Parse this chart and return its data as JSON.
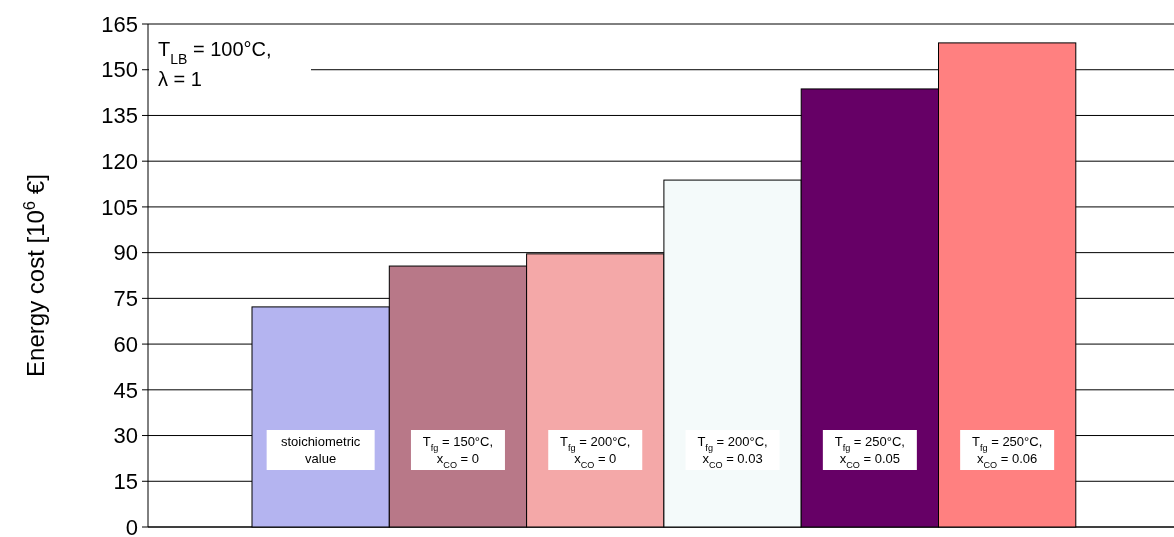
{
  "chart_data": {
    "type": "bar",
    "ylabel": "Energy cost [10$^{6}$ €]",
    "categories": [
      "stoichiometric\nvalue",
      "T$_{fg}$ = 150°C,\nx$_{CO}$ = 0",
      "T$_{fg}$ = 200°C,\nx$_{CO}$ = 0",
      "T$_{fg}$ = 200°C,\nx$_{CO}$ = 0.03",
      "T$_{fg}$ = 250°C,\nx$_{CO}$ = 0.05",
      "T$_{fg}$ = 250°C,\nx$_{CO}$ = 0.06"
    ],
    "values": [
      72.2,
      85.6,
      89.6,
      113.8,
      143.7,
      158.8
    ],
    "colors": [
      "#b4b4f0",
      "#b87888",
      "#f4a8a8",
      "#f4fafa",
      "#660066",
      "#ff8080"
    ],
    "ylim": [
      0,
      165
    ],
    "yticks": [
      0,
      15,
      30,
      45,
      60,
      75,
      90,
      105,
      120,
      135,
      150,
      165
    ],
    "grid": "y",
    "annotations": [
      "T$_{LB}$ = 100°C,\nλ = 1"
    ]
  }
}
